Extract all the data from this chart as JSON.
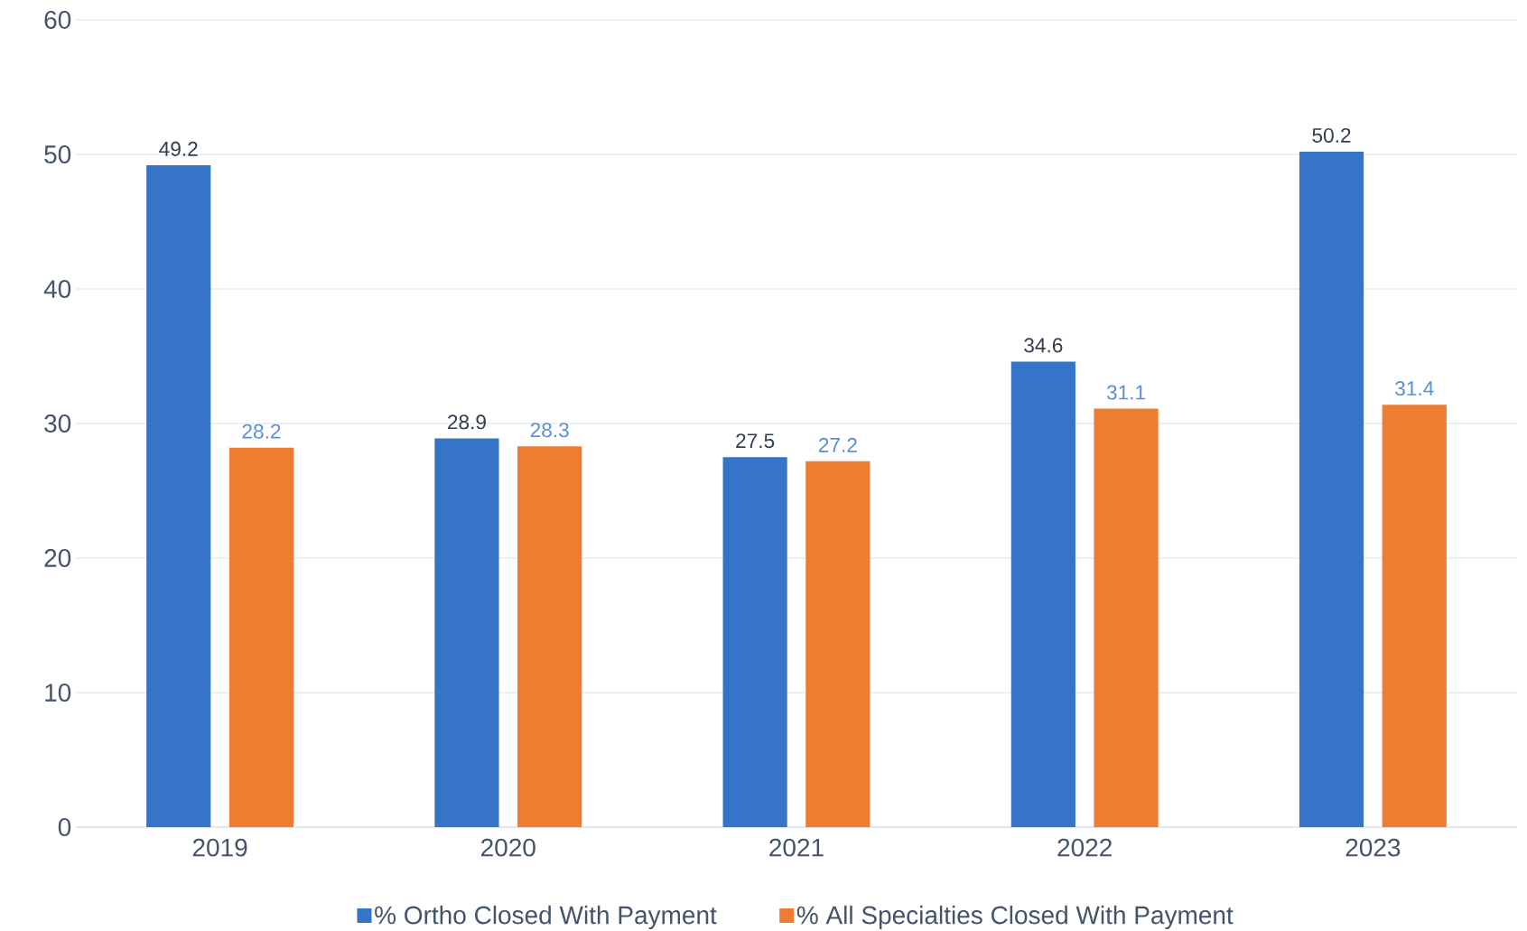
{
  "chart_data": {
    "type": "bar",
    "categories": [
      "2019",
      "2020",
      "2021",
      "2022",
      "2023"
    ],
    "series": [
      {
        "name": "% Ortho Closed With Payment",
        "color": "#3674c8",
        "values": [
          49.2,
          28.9,
          27.5,
          34.6,
          50.2
        ]
      },
      {
        "name": "% All Specialties Closed With Payment",
        "color": "#ed7d31",
        "values": [
          28.2,
          28.3,
          27.2,
          31.1,
          31.4
        ]
      }
    ],
    "ylim": [
      0,
      60
    ],
    "yticks": [
      0,
      10,
      20,
      30,
      40,
      50,
      60
    ],
    "grid": "y",
    "legend": "bottom",
    "data_labels": true
  }
}
